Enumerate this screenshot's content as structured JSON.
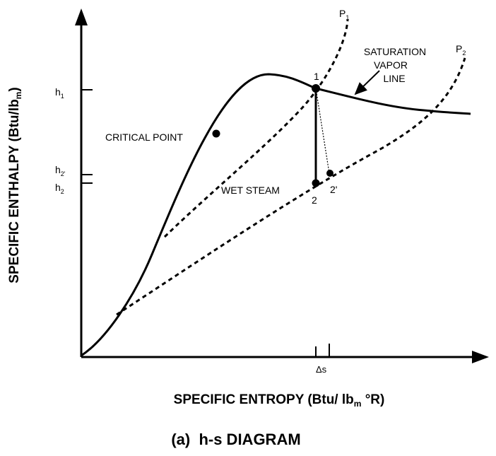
{
  "diagram": {
    "caption": "(a)  h-s DIAGRAM",
    "x_axis_label": "SPECIFIC ENTROPY (Btu/ lb",
    "x_axis_label_sub": "m",
    "x_axis_label_tail": " °R)",
    "y_axis_label": "SPECIFIC ENTHALPY (Btu/lb",
    "y_axis_label_sub": "m",
    "y_axis_label_tail": ")",
    "y_ticks": [
      {
        "main": "h",
        "sub": "1"
      },
      {
        "main": "h",
        "sub": "2'"
      },
      {
        "main": "h",
        "sub": "2"
      }
    ],
    "x_tick_label": "Δs",
    "curves": {
      "p1": {
        "main": "P",
        "sub": "1"
      },
      "p2": {
        "main": "P",
        "sub": "2"
      },
      "saturation": [
        "SATURATION",
        "VAPOR",
        "LINE"
      ]
    },
    "annotations": {
      "critical_point": "CRITICAL POINT",
      "wet_steam": "WET STEAM",
      "point1": "1",
      "point2": "2",
      "point2p": "2'"
    }
  }
}
